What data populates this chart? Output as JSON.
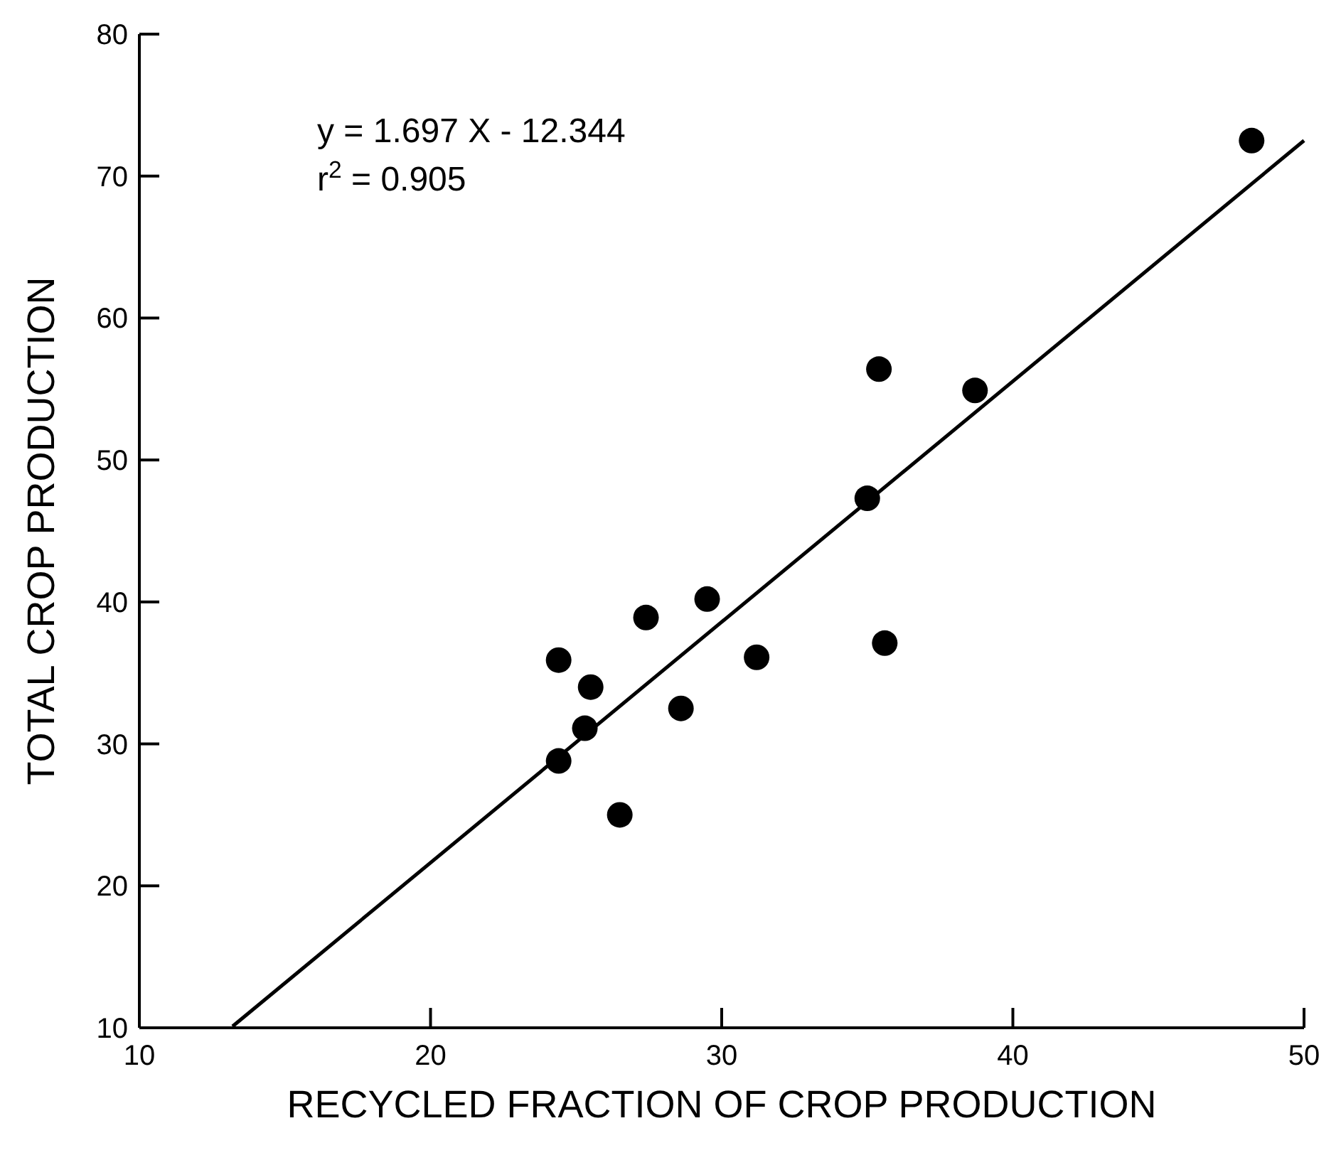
{
  "chart_data": {
    "type": "scatter",
    "xlabel": "RECYCLED  FRACTION  OF  CROP  PRODUCTION",
    "ylabel": "TOTAL  CROP  PRODUCTION",
    "annotations": [
      "y = 1.697 X - 12.344",
      "r$^{2}$ = 0.905"
    ],
    "xlim": [
      10,
      50
    ],
    "xticks": [
      10,
      20,
      30,
      40,
      50
    ],
    "ylim": [
      10,
      80
    ],
    "yticks": [
      10,
      20,
      30,
      40,
      50,
      60,
      70,
      80
    ],
    "grid": false,
    "marker": "circle",
    "series": [
      {
        "color": "#000000",
        "x": [
          48.2,
          35.4,
          38.7,
          35.0,
          24.4,
          25.5,
          25.3,
          24.4,
          26.5,
          27.4,
          29.5,
          31.2,
          28.6,
          35.6
        ],
        "values": [
          72.5,
          56.4,
          54.9,
          47.3,
          35.9,
          34.0,
          31.1,
          28.8,
          25.0,
          38.9,
          40.2,
          36.1,
          32.5,
          37.1
        ]
      },
      {
        "type": "line",
        "color": "#000000",
        "marker": "none",
        "line_style": "solid",
        "x": [
          13.2,
          50
        ],
        "values": [
          10.1,
          72.5
        ]
      }
    ]
  }
}
